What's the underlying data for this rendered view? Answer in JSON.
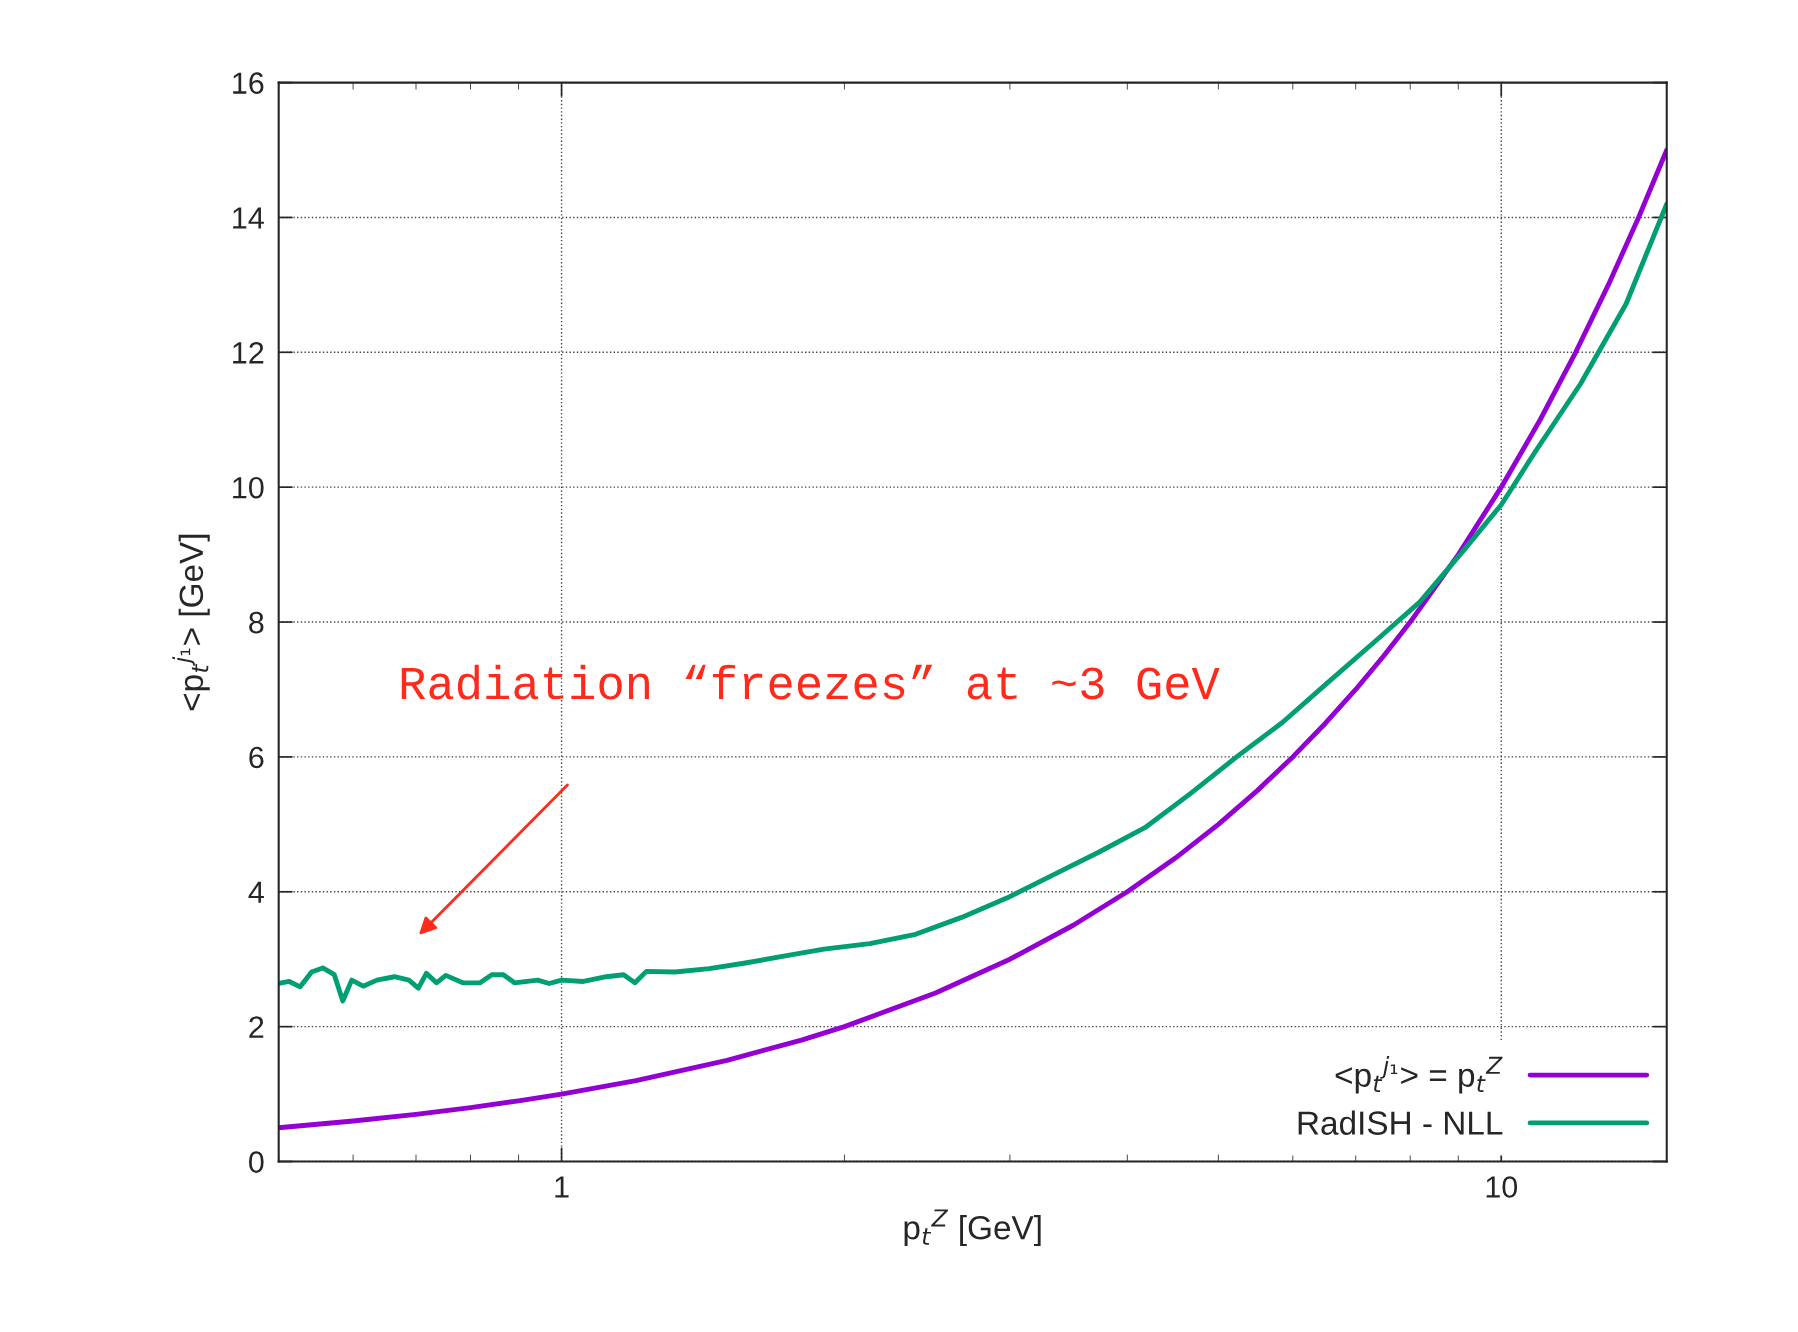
{
  "chart_data": {
    "type": "line",
    "xlabel": "p$_{t}$$^{Z}$ [GeV]",
    "ylabel": "<p$_{t}$$^{j₁}$> [GeV]",
    "log": "x",
    "xlim": [
      0.5,
      15
    ],
    "xticks": [
      1,
      10
    ],
    "ylim": [
      0,
      16
    ],
    "yticks": [
      0,
      2,
      4,
      6,
      8,
      10,
      12,
      14,
      16
    ],
    "grid": true,
    "legend": "bottom right",
    "line_style": "solid",
    "marker": "none",
    "series": [
      {
        "name": "<p$_{t}$$^{j₁}$> = p$_{t}$$^{Z}$",
        "color": "#9400d3",
        "x": [
          0.5,
          0.6,
          0.7,
          0.8,
          0.9,
          1,
          1.2,
          1.5,
          1.8,
          2,
          2.5,
          3,
          3.5,
          4,
          4.5,
          5,
          5.5,
          6,
          6.5,
          7,
          7.5,
          8,
          9,
          10,
          11,
          12,
          13,
          14,
          15
        ],
        "values": [
          0.5,
          0.6,
          0.7,
          0.8,
          0.9,
          1,
          1.2,
          1.5,
          1.8,
          2,
          2.5,
          3,
          3.5,
          4,
          4.5,
          5,
          5.5,
          6,
          6.5,
          7,
          7.5,
          8,
          9,
          10,
          11,
          12,
          13,
          14,
          15
        ]
      },
      {
        "name": "RadISH - NLL",
        "color": "#009e73",
        "x": [
          0.5,
          0.513,
          0.527,
          0.542,
          0.557,
          0.573,
          0.585,
          0.598,
          0.615,
          0.636,
          0.664,
          0.688,
          0.704,
          0.718,
          0.736,
          0.753,
          0.785,
          0.819,
          0.843,
          0.867,
          0.891,
          0.943,
          0.97,
          1.0,
          1.055,
          1.116,
          1.164,
          1.197,
          1.231,
          1.32,
          1.436,
          1.563,
          1.748,
          1.902,
          2.128,
          2.381,
          2.665,
          2.981,
          3.336,
          3.733,
          4.176,
          4.672,
          5.228,
          5.849,
          6.545,
          7.322,
          8.193,
          9.167,
          10,
          10.85,
          12.14,
          13.58,
          15
        ],
        "values": [
          2.64,
          2.67,
          2.59,
          2.81,
          2.87,
          2.77,
          2.38,
          2.69,
          2.6,
          2.69,
          2.74,
          2.69,
          2.57,
          2.79,
          2.65,
          2.76,
          2.65,
          2.65,
          2.77,
          2.77,
          2.65,
          2.69,
          2.64,
          2.69,
          2.67,
          2.74,
          2.77,
          2.65,
          2.82,
          2.81,
          2.86,
          2.94,
          3.06,
          3.15,
          3.23,
          3.37,
          3.62,
          3.91,
          4.25,
          4.59,
          4.95,
          5.46,
          6.0,
          6.51,
          7.11,
          7.7,
          8.3,
          9.1,
          9.74,
          10.51,
          11.53,
          12.72,
          14.2
        ]
      }
    ],
    "annotations": [
      "Radiation “freezes” at ~3 GeV"
    ]
  }
}
